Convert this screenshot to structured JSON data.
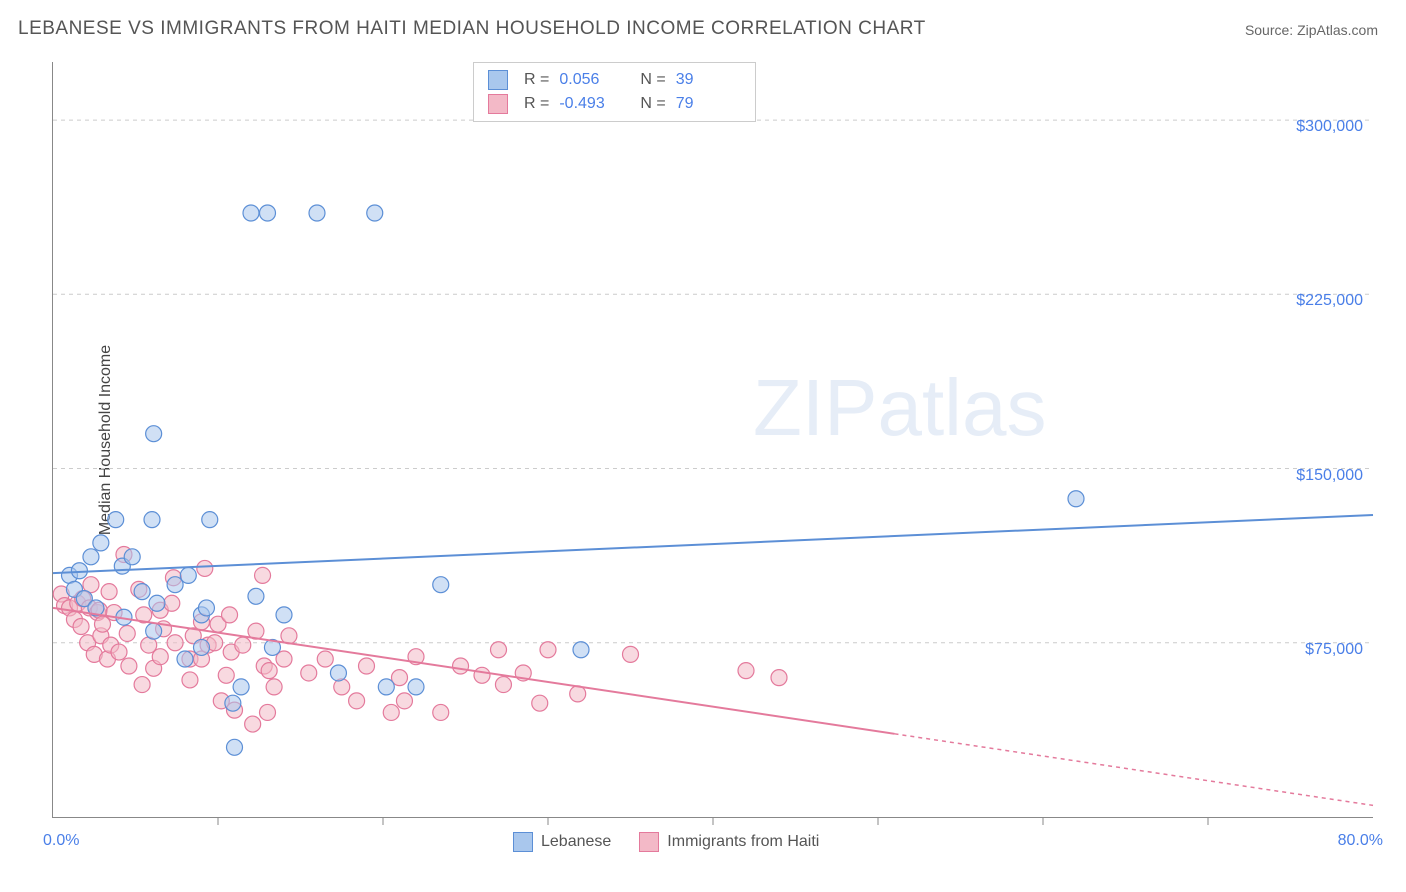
{
  "title": "LEBANESE VS IMMIGRANTS FROM HAITI MEDIAN HOUSEHOLD INCOME CORRELATION CHART",
  "source": "Source: ZipAtlas.com",
  "y_axis_title": "Median Household Income",
  "watermark_zip": "ZIP",
  "watermark_atlas": "atlas",
  "chart": {
    "type": "scatter",
    "xlim": [
      0,
      80
    ],
    "ylim": [
      0,
      325000
    ],
    "x_min_label": "0.0%",
    "x_max_label": "80.0%",
    "y_ticks": [
      75000,
      150000,
      225000,
      300000
    ],
    "y_tick_labels": [
      "$75,000",
      "$150,000",
      "$225,000",
      "$300,000"
    ],
    "x_tick_positions": [
      10,
      20,
      30,
      40,
      50,
      60,
      70
    ],
    "grid_color": "#cccccc",
    "background_color": "#ffffff",
    "marker_radius": 8,
    "series": [
      {
        "name": "Lebanese",
        "fill": "#a9c7ed",
        "stroke": "#5c8fd6",
        "R": "0.056",
        "N": "39",
        "trend": {
          "y_intercept": 105000,
          "y_at_xmax": 130000,
          "solid_to_x": 80
        },
        "points": [
          [
            1.0,
            104000
          ],
          [
            1.3,
            98000
          ],
          [
            1.6,
            106000
          ],
          [
            1.9,
            94000
          ],
          [
            2.3,
            112000
          ],
          [
            2.6,
            90000
          ],
          [
            2.9,
            118000
          ],
          [
            3.8,
            128000
          ],
          [
            4.3,
            86000
          ],
          [
            4.2,
            108000
          ],
          [
            4.8,
            112000
          ],
          [
            5.4,
            97000
          ],
          [
            6.0,
            128000
          ],
          [
            6.1,
            80000
          ],
          [
            6.1,
            165000
          ],
          [
            6.3,
            92000
          ],
          [
            7.4,
            100000
          ],
          [
            8.0,
            68000
          ],
          [
            8.2,
            104000
          ],
          [
            9.0,
            87000
          ],
          [
            9.0,
            73000
          ],
          [
            9.3,
            90000
          ],
          [
            9.5,
            128000
          ],
          [
            10.9,
            49000
          ],
          [
            11.0,
            30000
          ],
          [
            11.4,
            56000
          ],
          [
            12.3,
            95000
          ],
          [
            12.0,
            260000
          ],
          [
            13.0,
            260000
          ],
          [
            13.3,
            73000
          ],
          [
            14.0,
            87000
          ],
          [
            16.0,
            260000
          ],
          [
            17.3,
            62000
          ],
          [
            19.5,
            260000
          ],
          [
            20.2,
            56000
          ],
          [
            22.0,
            56000
          ],
          [
            23.5,
            100000
          ],
          [
            32.0,
            72000
          ],
          [
            62.0,
            137000
          ]
        ]
      },
      {
        "name": "Immigrants from Haiti",
        "fill": "#f3b9c7",
        "stroke": "#e47a9c",
        "R": "-0.493",
        "N": "79",
        "trend": {
          "y_intercept": 90000,
          "y_at_xmax": 5000,
          "solid_to_x": 51
        },
        "points": [
          [
            0.5,
            96000
          ],
          [
            0.7,
            91000
          ],
          [
            1.0,
            90000
          ],
          [
            1.3,
            85000
          ],
          [
            1.5,
            92000
          ],
          [
            1.8,
            94000
          ],
          [
            1.7,
            82000
          ],
          [
            2.1,
            75000
          ],
          [
            2.2,
            90000
          ],
          [
            2.3,
            100000
          ],
          [
            2.5,
            70000
          ],
          [
            2.7,
            88000
          ],
          [
            2.9,
            78000
          ],
          [
            2.8,
            89000
          ],
          [
            3.0,
            83000
          ],
          [
            3.3,
            68000
          ],
          [
            3.4,
            97000
          ],
          [
            3.7,
            88000
          ],
          [
            3.5,
            74000
          ],
          [
            4.0,
            71000
          ],
          [
            4.3,
            113000
          ],
          [
            4.5,
            79000
          ],
          [
            4.6,
            65000
          ],
          [
            5.2,
            98000
          ],
          [
            5.4,
            57000
          ],
          [
            5.5,
            87000
          ],
          [
            5.8,
            74000
          ],
          [
            6.1,
            64000
          ],
          [
            6.5,
            89000
          ],
          [
            6.7,
            81000
          ],
          [
            6.5,
            69000
          ],
          [
            7.2,
            92000
          ],
          [
            7.4,
            75000
          ],
          [
            7.3,
            103000
          ],
          [
            8.3,
            68000
          ],
          [
            8.5,
            78000
          ],
          [
            8.3,
            59000
          ],
          [
            9.0,
            84000
          ],
          [
            9.0,
            68000
          ],
          [
            9.2,
            107000
          ],
          [
            9.4,
            74000
          ],
          [
            9.8,
            75000
          ],
          [
            10.0,
            83000
          ],
          [
            10.2,
            50000
          ],
          [
            10.5,
            61000
          ],
          [
            10.8,
            71000
          ],
          [
            10.7,
            87000
          ],
          [
            11.0,
            46000
          ],
          [
            11.5,
            74000
          ],
          [
            12.1,
            40000
          ],
          [
            12.3,
            80000
          ],
          [
            12.7,
            104000
          ],
          [
            12.8,
            65000
          ],
          [
            13.0,
            45000
          ],
          [
            13.1,
            63000
          ],
          [
            13.4,
            56000
          ],
          [
            14.3,
            78000
          ],
          [
            14.0,
            68000
          ],
          [
            15.5,
            62000
          ],
          [
            16.5,
            68000
          ],
          [
            17.5,
            56000
          ],
          [
            18.4,
            50000
          ],
          [
            19.0,
            65000
          ],
          [
            20.5,
            45000
          ],
          [
            21.0,
            60000
          ],
          [
            21.3,
            50000
          ],
          [
            22.0,
            69000
          ],
          [
            23.5,
            45000
          ],
          [
            24.7,
            65000
          ],
          [
            26.0,
            61000
          ],
          [
            27.0,
            72000
          ],
          [
            27.3,
            57000
          ],
          [
            28.5,
            62000
          ],
          [
            29.5,
            49000
          ],
          [
            30.0,
            72000
          ],
          [
            31.8,
            53000
          ],
          [
            35.0,
            70000
          ],
          [
            42.0,
            63000
          ],
          [
            44.0,
            60000
          ]
        ]
      }
    ]
  },
  "stats_labels": {
    "R": "R =",
    "N": "N ="
  },
  "legend_labels": {
    "s1": "Lebanese",
    "s2": "Immigrants from Haiti"
  }
}
